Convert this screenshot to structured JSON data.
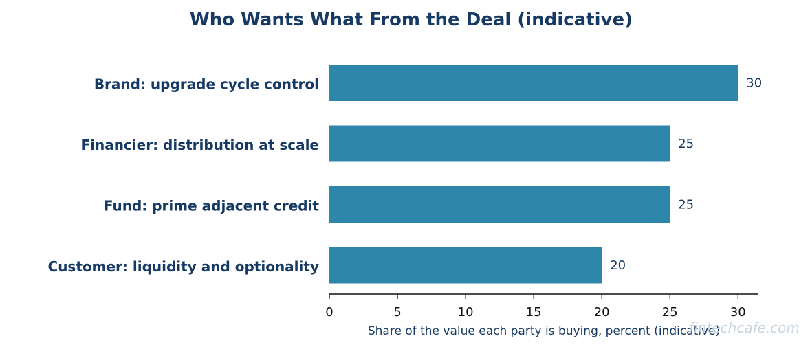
{
  "chart_data": {
    "type": "bar",
    "orientation": "horizontal",
    "title": "Who Wants What From the Deal (indicative)",
    "xlabel": "Share of the value each party is buying, percent (indicative)",
    "ylabel": "",
    "categories": [
      "Brand: upgrade cycle control",
      "Financier: distribution at scale",
      "Fund: prime adjacent credit",
      "Customer: liquidity and optionality"
    ],
    "values": [
      30,
      25,
      25,
      20
    ],
    "value_labels": [
      "30",
      "25",
      "25",
      "20"
    ],
    "xlim": [
      0,
      31.5
    ],
    "xticks": [
      0,
      5,
      10,
      15,
      20,
      25,
      30
    ],
    "xtick_labels": [
      "0",
      "5",
      "10",
      "15",
      "20",
      "25",
      "30"
    ],
    "grid": false,
    "legend": "none"
  },
  "watermark": {
    "text": "fintechcafe.com"
  },
  "colors": {
    "bar": "#2e87ab",
    "title": "#163a63",
    "category_label": "#163a63",
    "value_label": "#163a63",
    "axis_label": "#163a63",
    "axis_line": "#111111",
    "watermark": "#c9d3df"
  }
}
